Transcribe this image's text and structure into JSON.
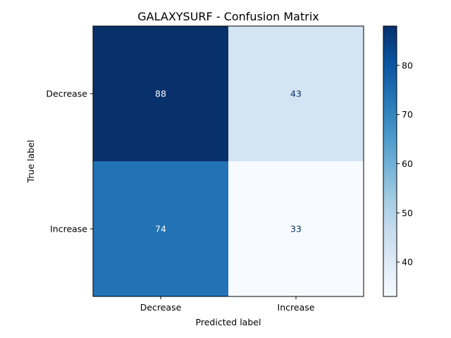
{
  "chart_data": {
    "type": "heatmap",
    "title": "GALAXYSURF - Confusion Matrix",
    "xlabel": "Predicted label",
    "ylabel": "True label",
    "x_categories": [
      "Decrease",
      "Increase"
    ],
    "y_categories": [
      "Decrease",
      "Increase"
    ],
    "values": [
      [
        88,
        43
      ],
      [
        74,
        33
      ]
    ],
    "colormap": "Blues",
    "colorbar": {
      "min": 33,
      "max": 88,
      "ticks": [
        40,
        50,
        60,
        70,
        80
      ]
    },
    "colors": {
      "dark_text": "#08306b",
      "light_text": "#f7fbff"
    }
  }
}
